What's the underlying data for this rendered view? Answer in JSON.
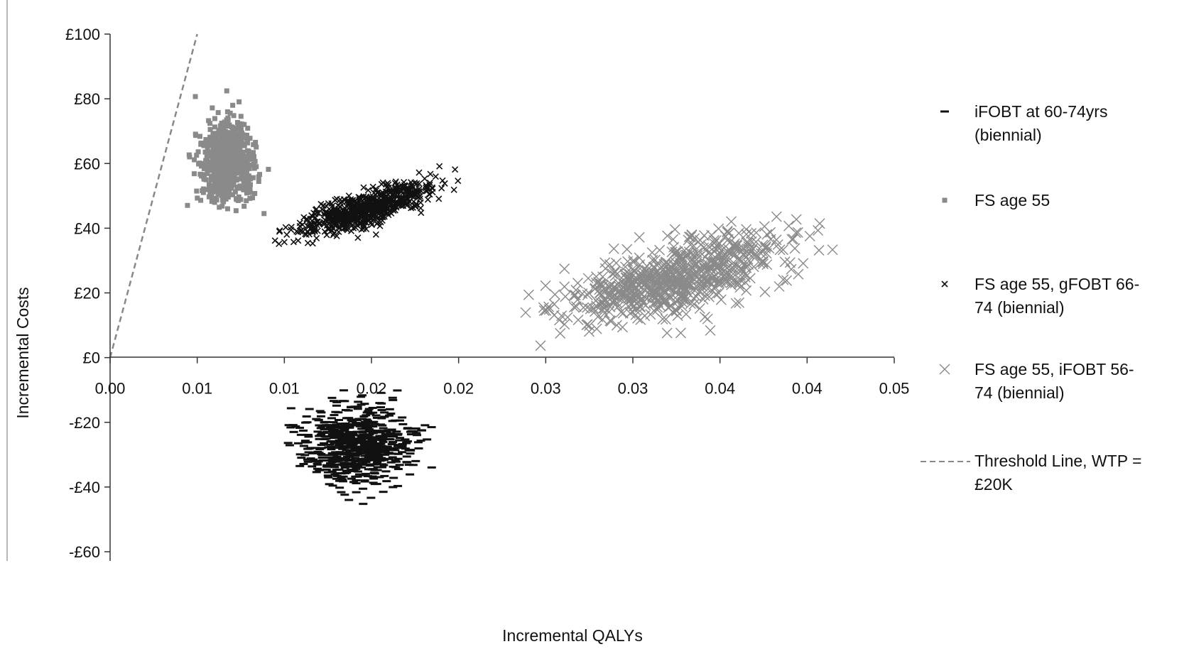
{
  "chart_data": {
    "type": "scatter",
    "title": "",
    "xlabel": "Incremental QALYs",
    "ylabel": "Incremental Costs",
    "xlim": [
      0,
      0.045
    ],
    "ylim": [
      -60,
      100
    ],
    "x_tick_labels": [
      "0.00",
      "0.01",
      "0.01",
      "0.02",
      "0.02",
      "0.03",
      "0.03",
      "0.04",
      "0.04",
      "0.05"
    ],
    "x_tick_values": [
      0,
      0.005,
      0.01,
      0.015,
      0.02,
      0.025,
      0.03,
      0.035,
      0.04,
      0.045
    ],
    "y_tick_labels": [
      "£100",
      "£80",
      "£60",
      "£40",
      "£20",
      "£0",
      "-£20",
      "-£40",
      "-£60"
    ],
    "y_tick_values": [
      100,
      80,
      60,
      40,
      20,
      0,
      -20,
      -40,
      -60
    ],
    "grid": false,
    "legend_position": "right",
    "series": [
      {
        "name": "iFOBT at 60-74yrs (biennial)",
        "name_lines": [
          "iFOBT at 60-74yrs",
          "(biennial)"
        ],
        "marker": "dash",
        "color": "#111111",
        "cloud": {
          "x_mean": 0.0142,
          "y_mean": -27,
          "x_sd": 0.00155,
          "y_sd": 6.2,
          "correlation": 0.0,
          "count": 700,
          "x_range": [
            0.0102,
            0.0195
          ],
          "y_range": [
            -46,
            -10
          ]
        }
      },
      {
        "name": "FS age 55",
        "name_lines": [
          "FS age 55"
        ],
        "marker": "square",
        "color": "#8a8a8a",
        "cloud": {
          "x_mean": 0.0067,
          "y_mean": 61,
          "x_sd": 0.00075,
          "y_sd": 6.5,
          "correlation": 0.0,
          "count": 700,
          "x_range": [
            0.0043,
            0.0098
          ],
          "y_range": [
            44,
            85
          ]
        }
      },
      {
        "name": "FS age 55, gFOBT 66-74 (biennial)",
        "name_lines": [
          "FS age 55, gFOBT 66-",
          "74 (biennial)"
        ],
        "marker": "small-x",
        "color": "#111111",
        "cloud": {
          "x_mean": 0.0147,
          "y_mean": 46,
          "x_sd": 0.00185,
          "y_sd": 4.2,
          "correlation": 0.78,
          "count": 700,
          "x_range": [
            0.0091,
            0.02
          ],
          "y_range": [
            35,
            60
          ]
        }
      },
      {
        "name": "FS age 55, iFOBT 56-74 (biennial)",
        "name_lines": [
          "FS age 55, iFOBT 56-",
          "74 (biennial)"
        ],
        "marker": "x",
        "color": "#8a8a8a",
        "cloud": {
          "x_mean": 0.0325,
          "y_mean": 25,
          "x_sd": 0.0032,
          "y_sd": 7.0,
          "correlation": 0.7,
          "count": 700,
          "x_range": [
            0.0232,
            0.0424
          ],
          "y_range": [
            0,
            48
          ]
        }
      }
    ],
    "threshold_line": {
      "name": "Threshold Line, WTP = £20K",
      "name_lines": [
        "Threshold Line, WTP =",
        "£20K"
      ],
      "style": "dashed",
      "color": "#888888",
      "points": [
        [
          0,
          0
        ],
        [
          0.005,
          100
        ]
      ]
    }
  }
}
